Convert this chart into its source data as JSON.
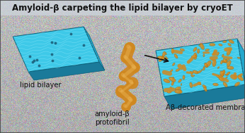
{
  "title": "Amyloid-β carpeting the lipid bilayer by cryoET",
  "label_lipid": "lipid bilayer",
  "label_amyloid": "amyloid-β\nprotofibril",
  "label_decorated": "Aβ-decorated membrane",
  "bilayer_color": "#3ec9e8",
  "bilayer_mid": "#25a8cc",
  "bilayer_dark": "#1a7a9a",
  "bilayer_edge": "#0d5f78",
  "amyloid_color": "#d08820",
  "amyloid_light": "#e8b050",
  "amyloid_dark": "#8a5808",
  "text_color": "#111111",
  "title_fontsize": 8.5,
  "label_fontsize": 7.2,
  "fig_width": 3.46,
  "fig_height": 1.89,
  "arrow_color": "#111111",
  "title_bg": "#d8dde3"
}
